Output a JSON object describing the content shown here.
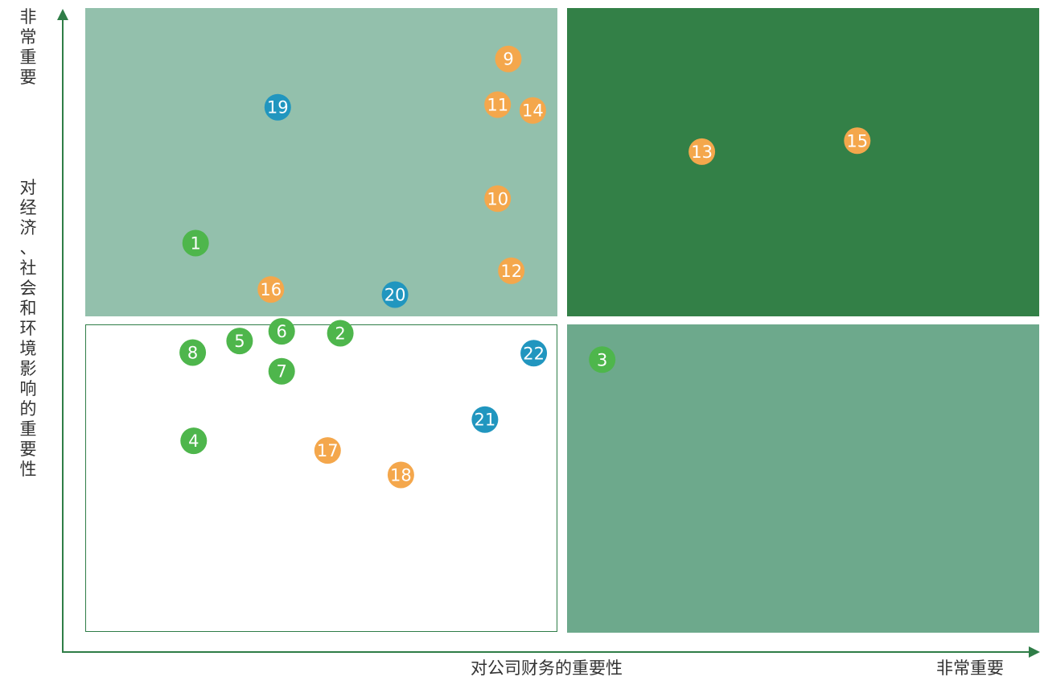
{
  "colors": {
    "axis": "#2f7d47",
    "quadrant_top_left": "#93c0ac",
    "quadrant_top_right": "#338047",
    "quadrant_bottom_right": "#6da98c",
    "quadrant_bottom_left_border": "#2f7d47",
    "economic": "#4eb64c",
    "social": "#f4a74c",
    "environment": "#2196bf"
  },
  "labels": {
    "y_axis_top": "非常重要",
    "y_axis_title": "对经济、社会和环境影响的重要性",
    "x_axis_title": "对公司财务的重要性",
    "x_axis_end": "非常重要"
  },
  "chart_data": {
    "type": "scatter",
    "title": "",
    "xlabel": "对公司财务的重要性",
    "ylabel": "对经济、社会和环境影响的重要性",
    "xlim": [
      0,
      100
    ],
    "ylim": [
      0,
      100
    ],
    "grid": false,
    "legend": "none",
    "points": [
      {
        "label": "1",
        "x": 13.6,
        "y": 63.5,
        "group": "economic"
      },
      {
        "label": "2",
        "x": 28.4,
        "y": 49.5,
        "group": "economic"
      },
      {
        "label": "3",
        "x": 55.2,
        "y": 45.4,
        "group": "economic"
      },
      {
        "label": "4",
        "x": 13.4,
        "y": 32.8,
        "group": "economic"
      },
      {
        "label": "5",
        "x": 18.1,
        "y": 48.3,
        "group": "economic"
      },
      {
        "label": "6",
        "x": 22.4,
        "y": 49.8,
        "group": "economic"
      },
      {
        "label": "7",
        "x": 22.4,
        "y": 43.6,
        "group": "economic"
      },
      {
        "label": "8",
        "x": 13.3,
        "y": 46.5,
        "group": "economic"
      },
      {
        "label": "9",
        "x": 45.6,
        "y": 92.1,
        "group": "social"
      },
      {
        "label": "10",
        "x": 44.5,
        "y": 70.4,
        "group": "social"
      },
      {
        "label": "11",
        "x": 44.5,
        "y": 85.0,
        "group": "social"
      },
      {
        "label": "12",
        "x": 45.9,
        "y": 59.2,
        "group": "social"
      },
      {
        "label": "13",
        "x": 65.4,
        "y": 77.7,
        "group": "social"
      },
      {
        "label": "14",
        "x": 48.1,
        "y": 84.1,
        "group": "social"
      },
      {
        "label": "15",
        "x": 81.3,
        "y": 79.4,
        "group": "social"
      },
      {
        "label": "16",
        "x": 21.3,
        "y": 56.3,
        "group": "social"
      },
      {
        "label": "17",
        "x": 27.1,
        "y": 31.3,
        "group": "social"
      },
      {
        "label": "18",
        "x": 34.6,
        "y": 27.5,
        "group": "social"
      },
      {
        "label": "19",
        "x": 22.0,
        "y": 84.6,
        "group": "environment"
      },
      {
        "label": "20",
        "x": 34.0,
        "y": 55.5,
        "group": "environment"
      },
      {
        "label": "21",
        "x": 43.2,
        "y": 36.1,
        "group": "environment"
      },
      {
        "label": "22",
        "x": 48.2,
        "y": 46.4,
        "group": "environment"
      }
    ]
  }
}
